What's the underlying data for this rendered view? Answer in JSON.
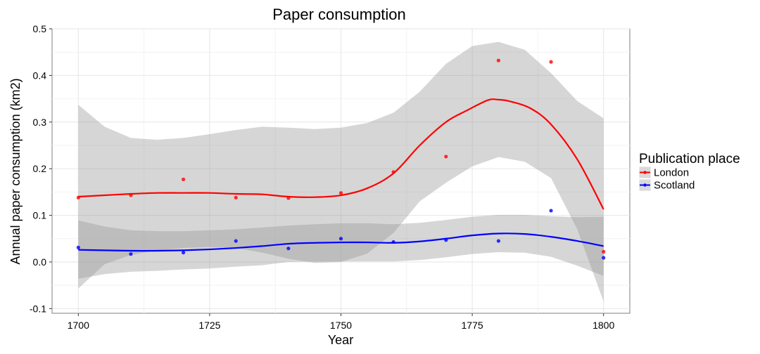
{
  "chart_data": {
    "type": "scatter",
    "title": "Paper consumption",
    "xlabel": "Year",
    "ylabel": "Annual paper consumption (km2)",
    "xlim": [
      1695,
      1805
    ],
    "ylim": [
      -0.11,
      0.5
    ],
    "x_ticks": [
      1700,
      1725,
      1750,
      1775,
      1800
    ],
    "y_ticks": [
      -0.1,
      0.0,
      0.1,
      0.2,
      0.3,
      0.4,
      0.5
    ],
    "y_tick_labels": [
      "-0.1",
      "0.0",
      "0.1",
      "0.2",
      "0.3",
      "0.4",
      "0.5"
    ],
    "grid": true,
    "legend": {
      "title": "Publication place",
      "position": "right"
    },
    "series": [
      {
        "name": "London",
        "color": "#ff0000",
        "points": [
          [
            1700,
            0.138
          ],
          [
            1710,
            0.143
          ],
          [
            1720,
            0.177
          ],
          [
            1730,
            0.138
          ],
          [
            1740,
            0.137
          ],
          [
            1750,
            0.148
          ],
          [
            1760,
            0.193
          ],
          [
            1770,
            0.226
          ],
          [
            1780,
            0.432
          ],
          [
            1790,
            0.429
          ],
          [
            1800,
            0.022
          ]
        ],
        "smooth": [
          [
            1700,
            0.14
          ],
          [
            1705,
            0.143
          ],
          [
            1710,
            0.146
          ],
          [
            1715,
            0.148
          ],
          [
            1720,
            0.148
          ],
          [
            1725,
            0.148
          ],
          [
            1730,
            0.146
          ],
          [
            1735,
            0.145
          ],
          [
            1740,
            0.14
          ],
          [
            1745,
            0.139
          ],
          [
            1750,
            0.143
          ],
          [
            1755,
            0.158
          ],
          [
            1760,
            0.19
          ],
          [
            1765,
            0.25
          ],
          [
            1770,
            0.3
          ],
          [
            1774,
            0.325
          ],
          [
            1778,
            0.347
          ],
          [
            1780,
            0.348
          ],
          [
            1782,
            0.345
          ],
          [
            1786,
            0.33
          ],
          [
            1790,
            0.295
          ],
          [
            1795,
            0.22
          ],
          [
            1800,
            0.113
          ]
        ],
        "band": [
          [
            1700,
            0.337,
            -0.057
          ],
          [
            1705,
            0.29,
            -0.005
          ],
          [
            1710,
            0.266,
            0.015
          ],
          [
            1715,
            0.262,
            0.025
          ],
          [
            1720,
            0.266,
            0.03
          ],
          [
            1725,
            0.274,
            0.032
          ],
          [
            1730,
            0.283,
            0.03
          ],
          [
            1735,
            0.29,
            0.02
          ],
          [
            1740,
            0.288,
            0.007
          ],
          [
            1745,
            0.285,
            -0.002
          ],
          [
            1750,
            0.288,
            0.0
          ],
          [
            1755,
            0.298,
            0.018
          ],
          [
            1760,
            0.32,
            0.062
          ],
          [
            1765,
            0.365,
            0.13
          ],
          [
            1770,
            0.425,
            0.17
          ],
          [
            1775,
            0.463,
            0.205
          ],
          [
            1780,
            0.472,
            0.225
          ],
          [
            1785,
            0.455,
            0.215
          ],
          [
            1790,
            0.405,
            0.18
          ],
          [
            1795,
            0.345,
            0.07
          ],
          [
            1800,
            0.308,
            -0.085
          ]
        ]
      },
      {
        "name": "Scotland",
        "color": "#0000ff",
        "points": [
          [
            1700,
            0.031
          ],
          [
            1710,
            0.017
          ],
          [
            1720,
            0.02
          ],
          [
            1730,
            0.045
          ],
          [
            1740,
            0.029
          ],
          [
            1750,
            0.05
          ],
          [
            1760,
            0.043
          ],
          [
            1770,
            0.047
          ],
          [
            1780,
            0.045
          ],
          [
            1790,
            0.11
          ],
          [
            1800,
            0.009
          ]
        ],
        "smooth": [
          [
            1700,
            0.026
          ],
          [
            1705,
            0.025
          ],
          [
            1710,
            0.024
          ],
          [
            1715,
            0.024
          ],
          [
            1720,
            0.025
          ],
          [
            1725,
            0.027
          ],
          [
            1730,
            0.03
          ],
          [
            1735,
            0.034
          ],
          [
            1740,
            0.039
          ],
          [
            1745,
            0.041
          ],
          [
            1750,
            0.042
          ],
          [
            1755,
            0.042
          ],
          [
            1760,
            0.041
          ],
          [
            1765,
            0.044
          ],
          [
            1770,
            0.05
          ],
          [
            1775,
            0.057
          ],
          [
            1780,
            0.061
          ],
          [
            1785,
            0.06
          ],
          [
            1790,
            0.054
          ],
          [
            1795,
            0.045
          ],
          [
            1800,
            0.034
          ]
        ],
        "band": [
          [
            1700,
            0.089,
            -0.036
          ],
          [
            1705,
            0.076,
            -0.026
          ],
          [
            1710,
            0.068,
            -0.021
          ],
          [
            1715,
            0.066,
            -0.019
          ],
          [
            1720,
            0.066,
            -0.016
          ],
          [
            1725,
            0.068,
            -0.014
          ],
          [
            1730,
            0.07,
            -0.01
          ],
          [
            1735,
            0.074,
            -0.007
          ],
          [
            1740,
            0.078,
            0.0
          ],
          [
            1745,
            0.081,
            0.001
          ],
          [
            1750,
            0.083,
            0.001
          ],
          [
            1755,
            0.083,
            0.001
          ],
          [
            1760,
            0.081,
            0.001
          ],
          [
            1765,
            0.084,
            0.004
          ],
          [
            1770,
            0.09,
            0.01
          ],
          [
            1775,
            0.097,
            0.017
          ],
          [
            1780,
            0.101,
            0.021
          ],
          [
            1785,
            0.101,
            0.02
          ],
          [
            1790,
            0.098,
            0.011
          ],
          [
            1795,
            0.096,
            -0.008
          ],
          [
            1800,
            0.097,
            -0.03
          ]
        ]
      }
    ]
  }
}
